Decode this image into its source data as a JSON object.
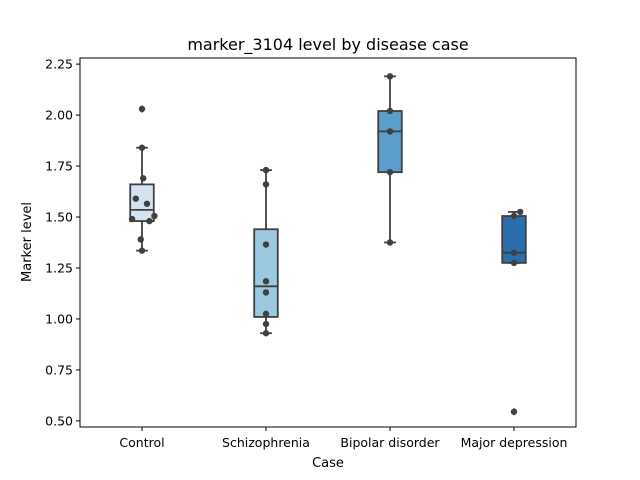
{
  "chart_data": {
    "type": "box",
    "title": "marker_3104 level by disease case",
    "xlabel": "Case",
    "ylabel": "Marker level",
    "categories": [
      "Control",
      "Schizophrenia",
      "Bipolar disorder",
      "Major depression"
    ],
    "ylim": [
      0.47,
      2.28
    ],
    "yticks": [
      "0.50",
      "0.75",
      "1.00",
      "1.25",
      "1.50",
      "1.75",
      "2.00",
      "2.25"
    ],
    "grid": false,
    "legend": "none",
    "box_colors": [
      "#d3e3f2",
      "#9ac9e0",
      "#5a9fcc",
      "#2b6eae"
    ],
    "boxes": [
      {
        "category": "Control",
        "whisker_low": 1.335,
        "q1": 1.48,
        "median": 1.535,
        "q3": 1.66,
        "whisker_high": 1.84,
        "outliers": [
          2.03
        ]
      },
      {
        "category": "Schizophrenia",
        "whisker_low": 0.93,
        "q1": 1.01,
        "median": 1.16,
        "q3": 1.44,
        "whisker_high": 1.73,
        "outliers": []
      },
      {
        "category": "Bipolar disorder",
        "whisker_low": 1.375,
        "q1": 1.72,
        "median": 1.92,
        "q3": 2.02,
        "whisker_high": 2.19,
        "outliers": []
      },
      {
        "category": "Major depression",
        "whisker_low": 1.275,
        "q1": 1.275,
        "median": 1.325,
        "q3": 1.505,
        "whisker_high": 1.525,
        "outliers": [
          0.545
        ]
      }
    ],
    "points": [
      {
        "category": "Control",
        "values": [
          1.335,
          1.39,
          1.48,
          1.49,
          1.505,
          1.565,
          1.59,
          1.69,
          1.84,
          2.03
        ],
        "offsets": [
          0.0,
          -0.01,
          0.06,
          -0.08,
          0.1,
          0.04,
          -0.05,
          0.01,
          0.0,
          0.0
        ]
      },
      {
        "category": "Schizophrenia",
        "values": [
          0.93,
          0.975,
          1.025,
          1.13,
          1.185,
          1.365,
          1.66,
          1.73
        ],
        "offsets": [
          0.0,
          0.0,
          0.0,
          0.0,
          0.0,
          0.0,
          0.0,
          0.0
        ]
      },
      {
        "category": "Bipolar disorder",
        "values": [
          1.375,
          1.72,
          1.92,
          2.02,
          2.19
        ],
        "offsets": [
          0.0,
          0.0,
          0.0,
          0.0,
          0.0
        ]
      },
      {
        "category": "Major depression",
        "values": [
          0.545,
          1.275,
          1.325,
          1.505,
          1.525
        ],
        "offsets": [
          0.0,
          0.0,
          0.0,
          0.0,
          0.05
        ]
      }
    ]
  }
}
